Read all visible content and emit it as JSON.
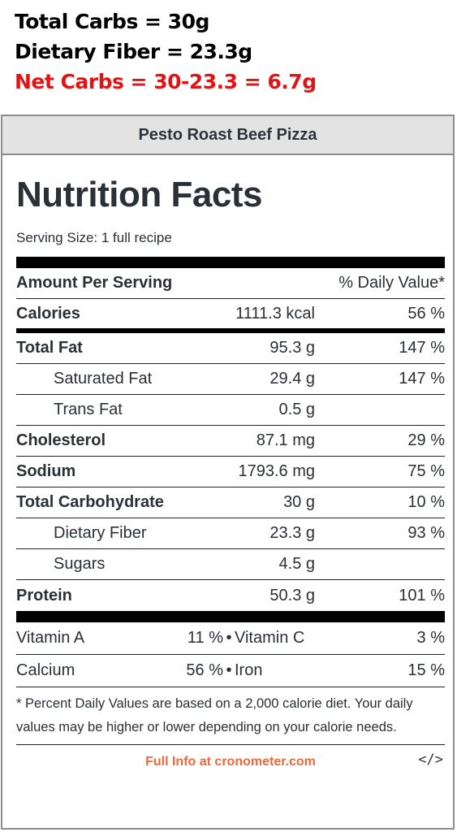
{
  "headlines": {
    "total_carbs": "Total Carbs = 30g",
    "dietary_fiber": "Dietary Fiber = 23.3g",
    "net_carbs": "Net Carbs = 30-23.3 = 6.7g"
  },
  "colors": {
    "net_carbs": "#e01414",
    "footer_link": "#e86a3a",
    "header_bg": "#e3e3e3"
  },
  "panel": {
    "title": "Pesto Roast Beef Pizza"
  },
  "label": {
    "title": "Nutrition Facts",
    "serving_size": "Serving Size: 1 full recipe",
    "header": {
      "amount": "Amount Per Serving",
      "dv": "% Daily Value*"
    },
    "calories": {
      "name": "Calories",
      "amount": "1111.3 kcal",
      "pct": "56 %"
    },
    "rows": [
      {
        "name": "Total Fat",
        "amount": "95.3 g",
        "pct": "147 %"
      },
      {
        "name": "Saturated Fat",
        "amount": "29.4 g",
        "pct": "147 %"
      },
      {
        "name": "Trans Fat",
        "amount": "0.5 g",
        "pct": ""
      },
      {
        "name": "Cholesterol",
        "amount": "87.1 mg",
        "pct": "29 %"
      },
      {
        "name": "Sodium",
        "amount": "1793.6 mg",
        "pct": "75 %"
      },
      {
        "name": "Total Carbohydrate",
        "amount": "30 g",
        "pct": "10 %"
      },
      {
        "name": "Dietary Fiber",
        "amount": "23.3 g",
        "pct": "93 %"
      },
      {
        "name": "Sugars",
        "amount": "4.5 g",
        "pct": ""
      },
      {
        "name": "Protein",
        "amount": "50.3 g",
        "pct": "101 %"
      }
    ],
    "vitamins": [
      {
        "a_name": "Vitamin A",
        "a_pct": "11 %",
        "sep": "•",
        "b_name": "Vitamin C",
        "b_pct": "3 %"
      },
      {
        "a_name": "Calcium",
        "a_pct": "56 %",
        "sep": "•",
        "b_name": "Iron",
        "b_pct": "15 %"
      }
    ],
    "footnote": "* Percent Daily Values are based on a 2,000 calorie diet. Your daily values may be higher or lower depending on your calorie needs.",
    "footer_link": "Full Info at cronometer.com",
    "embed_code": "</>"
  }
}
